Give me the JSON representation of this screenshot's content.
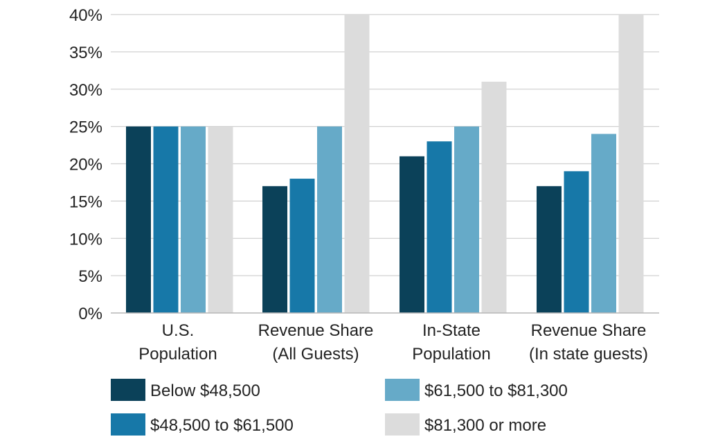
{
  "chart_data": {
    "type": "bar",
    "title": "",
    "xlabel": "",
    "ylabel": "",
    "ylim": [
      0,
      40
    ],
    "yticks": [
      "0%",
      "5%",
      "10%",
      "15%",
      "20%",
      "25%",
      "30%",
      "35%",
      "40%"
    ],
    "grid": true,
    "legend_position": "bottom",
    "categories": [
      [
        "U.S.",
        "Population"
      ],
      [
        "Revenue Share",
        "(All Guests)"
      ],
      [
        "In-State",
        "Population"
      ],
      [
        "Revenue Share",
        "(In state guests)"
      ]
    ],
    "series": [
      {
        "name": "Below $48,500",
        "color": "#0b4159",
        "values": [
          25,
          17,
          21,
          17
        ]
      },
      {
        "name": "$48,500 to $61,500",
        "color": "#1778a8",
        "values": [
          25,
          18,
          23,
          19
        ]
      },
      {
        "name": "$61,500 to $81,300",
        "color": "#66aac8",
        "values": [
          25,
          25,
          25,
          24
        ]
      },
      {
        "name": "$81,300 or more",
        "color": "#dcdcdc",
        "values": [
          25,
          40,
          31,
          40
        ]
      }
    ]
  }
}
